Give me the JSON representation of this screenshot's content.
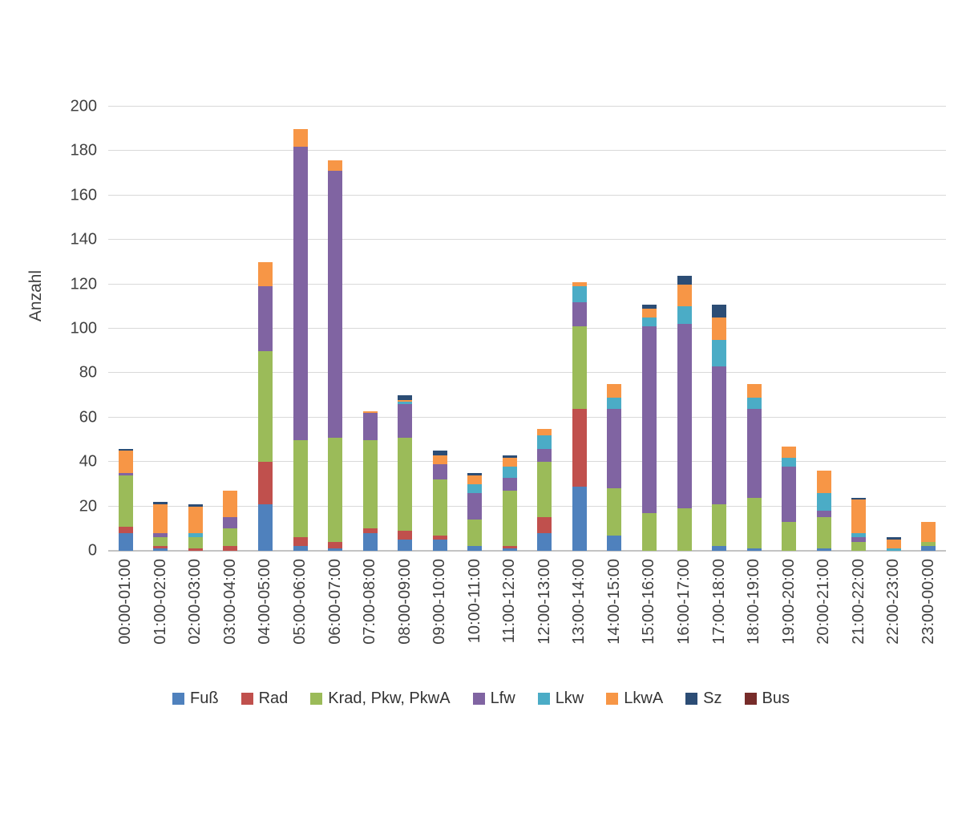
{
  "chart_data": {
    "type": "bar",
    "stacked": true,
    "title": "",
    "xlabel": "",
    "ylabel": "Anzahl",
    "ylim": [
      0,
      200
    ],
    "ytick_step": 20,
    "grid": true,
    "legend_position": "bottom",
    "grid_color": "#d9d9d9",
    "categories": [
      "00:00-01:00",
      "01:00-02:00",
      "02:00-03:00",
      "03:00-04:00",
      "04:00-05:00",
      "05:00-06:00",
      "06:00-07:00",
      "07:00-08:00",
      "08:00-09:00",
      "09:00-10:00",
      "10:00-11:00",
      "11:00-12:00",
      "12:00-13:00",
      "13:00-14:00",
      "14:00-15:00",
      "15:00-16:00",
      "16:00-17:00",
      "17:00-18:00",
      "18:00-19:00",
      "19:00-20:00",
      "20:00-21:00",
      "21:00-22:00",
      "22:00-23:00",
      "23:00-00:00"
    ],
    "series": [
      {
        "name": "Fuß",
        "color": "#4F81BD",
        "values": [
          8,
          1,
          0,
          0,
          21,
          2,
          1,
          8,
          5,
          5,
          2,
          1,
          8,
          29,
          7,
          0,
          0,
          2,
          1,
          0,
          1,
          0,
          0,
          2
        ]
      },
      {
        "name": "Rad",
        "color": "#C0504D",
        "values": [
          3,
          1,
          1,
          2,
          19,
          4,
          3,
          2,
          4,
          2,
          0,
          1,
          7,
          35,
          0,
          0,
          0,
          0,
          0,
          0,
          0,
          0,
          0,
          0
        ]
      },
      {
        "name": "Krad, Pkw, PkwA",
        "color": "#9BBB59",
        "values": [
          23,
          4,
          5,
          8,
          50,
          44,
          47,
          40,
          42,
          25,
          12,
          25,
          25,
          37,
          21,
          17,
          19,
          19,
          23,
          13,
          14,
          4,
          0,
          2
        ]
      },
      {
        "name": "Lfw",
        "color": "#8064A2",
        "values": [
          1,
          2,
          0,
          5,
          29,
          132,
          120,
          12,
          15,
          7,
          12,
          6,
          6,
          11,
          36,
          84,
          83,
          62,
          40,
          25,
          3,
          2,
          0,
          0
        ]
      },
      {
        "name": "Lkw",
        "color": "#4BACC6",
        "values": [
          0,
          0,
          2,
          0,
          0,
          0,
          0,
          0,
          1,
          0,
          4,
          5,
          6,
          7,
          5,
          4,
          8,
          12,
          5,
          4,
          8,
          2,
          1,
          0
        ]
      },
      {
        "name": "LkwA",
        "color": "#F79646",
        "values": [
          10,
          13,
          12,
          12,
          11,
          8,
          5,
          1,
          1,
          4,
          4,
          4,
          3,
          2,
          6,
          4,
          10,
          10,
          6,
          5,
          10,
          15,
          4,
          9
        ]
      },
      {
        "name": "Sz",
        "color": "#2C4D75",
        "values": [
          1,
          1,
          1,
          0,
          0,
          0,
          0,
          0,
          2,
          2,
          1,
          1,
          0,
          0,
          0,
          2,
          4,
          6,
          0,
          0,
          0,
          1,
          1,
          0
        ]
      },
      {
        "name": "Bus",
        "color": "#772C2A",
        "values": [
          0,
          0,
          0,
          0,
          0,
          0,
          0,
          0,
          0,
          0,
          0,
          0,
          0,
          0,
          0,
          0,
          0,
          0,
          0,
          0,
          0,
          0,
          0,
          0
        ]
      }
    ]
  }
}
